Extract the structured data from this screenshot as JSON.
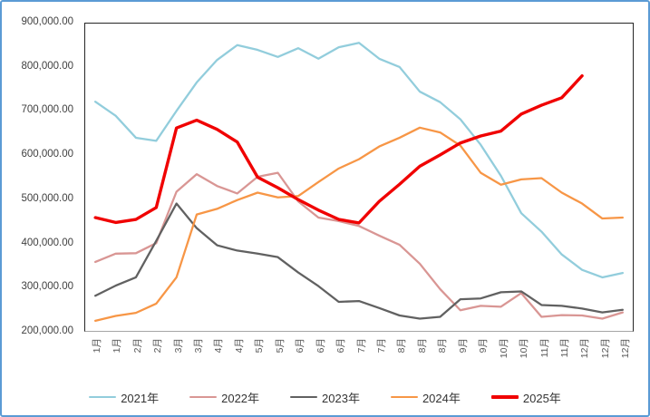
{
  "chart_data": {
    "type": "line",
    "title": "",
    "xlabel": "",
    "ylabel": "",
    "legend_position": "bottom",
    "grid": false,
    "y_axis": {
      "min": 200000,
      "max": 900000,
      "tick_step": 100000,
      "labels": [
        "900,000.00",
        "800,000.00",
        "700,000.00",
        "600,000.00",
        "500,000.00",
        "400,000.00",
        "300,000.00",
        "200,000.00"
      ]
    },
    "categories": [
      "1月",
      "1月",
      "2月",
      "2月",
      "3月",
      "3月",
      "4月",
      "4月",
      "5月",
      "5月",
      "6月",
      "6月",
      "6月",
      "7月",
      "7月",
      "8月",
      "8月",
      "8月",
      "9月",
      "9月",
      "10月",
      "10月",
      "11月",
      "11月",
      "12月",
      "12月",
      "12月"
    ],
    "series": [
      {
        "name": "2021年",
        "color": "#92CDDC",
        "width": 2.3,
        "values": [
          722000,
          690000,
          640000,
          633000,
          701000,
          766000,
          817000,
          851000,
          840000,
          824000,
          844000,
          820000,
          846000,
          856000,
          820000,
          801000,
          745000,
          721000,
          682000,
          624000,
          553000,
          468000,
          426000,
          374000,
          339000,
          322000,
          332000
        ]
      },
      {
        "name": "2022年",
        "color": "#D99694",
        "width": 2.3,
        "values": [
          357000,
          376000,
          377000,
          400000,
          517000,
          557000,
          530000,
          513000,
          551000,
          560000,
          495000,
          458000,
          450000,
          439000,
          417000,
          396000,
          353000,
          295000,
          247000,
          257000,
          255000,
          286000,
          232000,
          236000,
          235000,
          228000,
          242000
        ]
      },
      {
        "name": "2023年",
        "color": "#616161",
        "width": 2.3,
        "values": [
          280000,
          303000,
          322000,
          405000,
          490000,
          434000,
          395000,
          383000,
          376000,
          368000,
          333000,
          302000,
          266000,
          268000,
          252000,
          235000,
          228000,
          232000,
          272000,
          274000,
          288000,
          290000,
          259000,
          257000,
          251000,
          242000,
          248000
        ]
      },
      {
        "name": "2024年",
        "color": "#F79646",
        "width": 2.3,
        "values": [
          223000,
          234000,
          241000,
          262000,
          322000,
          465000,
          478000,
          498000,
          515000,
          504000,
          507000,
          539000,
          570000,
          591000,
          620000,
          640000,
          663000,
          652000,
          622000,
          560000,
          533000,
          545000,
          548000,
          515000,
          490000,
          456000,
          458000
        ]
      },
      {
        "name": "2025年",
        "color": "#F00000",
        "width": 3.4,
        "values": [
          458000,
          447000,
          454000,
          481000,
          662000,
          680000,
          659000,
          630000,
          550000,
          526000,
          499000,
          475000,
          454000,
          446000,
          495000,
          534000,
          575000,
          601000,
          628000,
          644000,
          655000,
          694000,
          714000,
          731000,
          781000,
          null,
          null
        ]
      }
    ],
    "frame_border_color": "#5B9BD5"
  }
}
